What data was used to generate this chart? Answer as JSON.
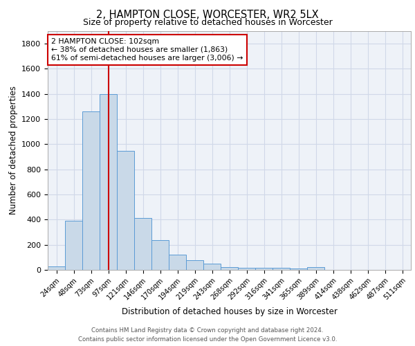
{
  "title1": "2, HAMPTON CLOSE, WORCESTER, WR2 5LX",
  "title2": "Size of property relative to detached houses in Worcester",
  "xlabel": "Distribution of detached houses by size in Worcester",
  "ylabel": "Number of detached properties",
  "categories": [
    "24sqm",
    "48sqm",
    "73sqm",
    "97sqm",
    "121sqm",
    "146sqm",
    "170sqm",
    "194sqm",
    "219sqm",
    "243sqm",
    "268sqm",
    "292sqm",
    "316sqm",
    "341sqm",
    "365sqm",
    "389sqm",
    "414sqm",
    "438sqm",
    "462sqm",
    "487sqm",
    "511sqm"
  ],
  "values": [
    30,
    390,
    1260,
    1400,
    950,
    415,
    235,
    120,
    75,
    50,
    20,
    15,
    15,
    15,
    10,
    20,
    0,
    0,
    0,
    0,
    0
  ],
  "bar_color": "#c9d9e8",
  "bar_edge_color": "#5b9bd5",
  "grid_color": "#d0d8e8",
  "bg_color": "#eef2f8",
  "vline_color": "#cc0000",
  "vline_x": 3.0,
  "annotation_text": "2 HAMPTON CLOSE: 102sqm\n← 38% of detached houses are smaller (1,863)\n61% of semi-detached houses are larger (3,006) →",
  "annotation_box_color": "#ffffff",
  "annotation_box_edge": "#cc0000",
  "footer_line1": "Contains HM Land Registry data © Crown copyright and database right 2024.",
  "footer_line2": "Contains public sector information licensed under the Open Government Licence v3.0.",
  "ylim": [
    0,
    1900
  ],
  "yticks": [
    0,
    200,
    400,
    600,
    800,
    1000,
    1200,
    1400,
    1600,
    1800
  ]
}
